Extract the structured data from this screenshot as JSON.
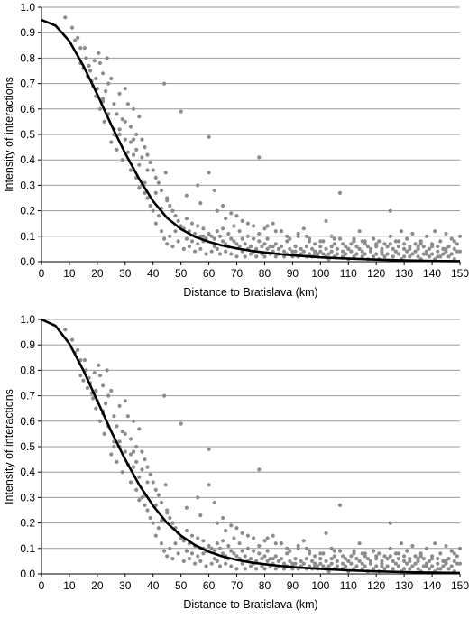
{
  "chart_data": [
    {
      "type": "scatter",
      "title": "",
      "xlabel": "Distance to Bratislava (km)",
      "ylabel": "Intensity of interactions",
      "xlim": [
        0,
        150
      ],
      "ylim": [
        0,
        1.0
      ],
      "x_ticks": [
        "0",
        "10",
        "20",
        "30",
        "40",
        "50",
        "60",
        "70",
        "80",
        "90",
        "100",
        "110",
        "120",
        "130",
        "140",
        "150"
      ],
      "y_ticks": [
        "0.0",
        "0.1",
        "0.2",
        "0.3",
        "0.4",
        "0.5",
        "0.6",
        "0.7",
        "0.8",
        "0.9",
        "1.0"
      ],
      "grid": "horizontal",
      "colors": {
        "points": "#8c8c8c",
        "curve": "#000000",
        "grid": "#9a9a9a"
      },
      "curve": {
        "x": [
          0,
          5,
          10,
          15,
          20,
          25,
          30,
          35,
          40,
          45,
          50,
          55,
          60,
          65,
          70,
          75,
          80,
          85,
          90,
          95,
          100,
          110,
          120,
          130,
          140,
          150
        ],
        "y": [
          0.95,
          0.928,
          0.867,
          0.77,
          0.657,
          0.538,
          0.426,
          0.325,
          0.238,
          0.172,
          0.128,
          0.098,
          0.078,
          0.063,
          0.052,
          0.043,
          0.036,
          0.03,
          0.025,
          0.021,
          0.017,
          0.012,
          0.008,
          0.005,
          0.003,
          0.002
        ]
      },
      "points_series": "dist_points"
    },
    {
      "type": "scatter",
      "title": "",
      "xlabel": "Distance to Bratislava (km)",
      "ylabel": "Intensity of interactions",
      "xlim": [
        0,
        150
      ],
      "ylim": [
        0,
        1.0
      ],
      "x_ticks": [
        "0",
        "10",
        "20",
        "30",
        "40",
        "50",
        "60",
        "70",
        "80",
        "90",
        "100",
        "110",
        "120",
        "130",
        "140",
        "150"
      ],
      "y_ticks": [
        "0.0",
        "0.1",
        "0.2",
        "0.3",
        "0.4",
        "0.5",
        "0.6",
        "0.7",
        "0.8",
        "0.9",
        "1.0"
      ],
      "grid": "horizontal",
      "colors": {
        "points": "#8c8c8c",
        "curve": "#000000",
        "grid": "#9a9a9a"
      },
      "curve": {
        "x": [
          0,
          5,
          10,
          15,
          20,
          25,
          30,
          35,
          40,
          45,
          50,
          55,
          60,
          65,
          70,
          75,
          80,
          85,
          90,
          95,
          100,
          110,
          120,
          130,
          140,
          150
        ],
        "y": [
          1.0,
          0.975,
          0.905,
          0.8,
          0.68,
          0.56,
          0.45,
          0.35,
          0.268,
          0.2,
          0.15,
          0.113,
          0.087,
          0.068,
          0.055,
          0.045,
          0.038,
          0.032,
          0.027,
          0.023,
          0.02,
          0.014,
          0.01,
          0.007,
          0.005,
          0.004
        ]
      },
      "points_series": "dist_points"
    }
  ],
  "dist_points": {
    "x": [
      8.5,
      11,
      12,
      13,
      14,
      14,
      15,
      15.5,
      16,
      16.5,
      17,
      17.5,
      18,
      18.5,
      19,
      19.5,
      19.5,
      20,
      20.5,
      21,
      21,
      22,
      22,
      22.5,
      23,
      23.5,
      24,
      24,
      25,
      25,
      26,
      26,
      27,
      27,
      28,
      28,
      29,
      29,
      30,
      30,
      31,
      31,
      32,
      32,
      33,
      33,
      34,
      34,
      35,
      35,
      36,
      36,
      37,
      37,
      38,
      38,
      39,
      39,
      40,
      40,
      41,
      41,
      42,
      42,
      43,
      43,
      44,
      44,
      44.5,
      45,
      45,
      46,
      46,
      47,
      47,
      48,
      48,
      49,
      49,
      50,
      50,
      51,
      51,
      52,
      52,
      53,
      53,
      54,
      54,
      55,
      55,
      56,
      56,
      57,
      57,
      58,
      58,
      59,
      59,
      60,
      60,
      61,
      61,
      62,
      62,
      63,
      63,
      64,
      64,
      65,
      65,
      66,
      66,
      67,
      67,
      68,
      68,
      69,
      69,
      70,
      70,
      71,
      71,
      72,
      72,
      73,
      73,
      74,
      74,
      75,
      75,
      76,
      76,
      77,
      77,
      78,
      78,
      79,
      79,
      80,
      80,
      81,
      81,
      82,
      82,
      83,
      83,
      84,
      84,
      85,
      85,
      86,
      86,
      87,
      87,
      88,
      88,
      89,
      89,
      90,
      90,
      91,
      91,
      92,
      92,
      93,
      93,
      94,
      94,
      95,
      95,
      96,
      96,
      97,
      97,
      98,
      98,
      99,
      99,
      100,
      100,
      101,
      101,
      102,
      102,
      103,
      103,
      104,
      104,
      105,
      105,
      106,
      106,
      107,
      107,
      108,
      108,
      109,
      109,
      110,
      110,
      111,
      111,
      112,
      112,
      113,
      113,
      114,
      114,
      115,
      115,
      116,
      116,
      117,
      117,
      118,
      118,
      119,
      119,
      120,
      120,
      121,
      121,
      122,
      122,
      123,
      123,
      124,
      124,
      125,
      125,
      126,
      126,
      127,
      127,
      128,
      128,
      129,
      129,
      130,
      130,
      131,
      131,
      132,
      132,
      133,
      133,
      134,
      134,
      135,
      135,
      136,
      136,
      137,
      137,
      138,
      138,
      139,
      139,
      140,
      140,
      141,
      141,
      142,
      142,
      143,
      143,
      144,
      144,
      145,
      145,
      146,
      146,
      147,
      147,
      148,
      148,
      149,
      149,
      150,
      26,
      28,
      30,
      32,
      34,
      36,
      38,
      24,
      22,
      33,
      37,
      41,
      45,
      35,
      43,
      47,
      52,
      56,
      60,
      62,
      65,
      68,
      72,
      76,
      80,
      84,
      88,
      92,
      96,
      100,
      104,
      108,
      112,
      116,
      120,
      124,
      128,
      132,
      136,
      140,
      144,
      148,
      57,
      63,
      74,
      81,
      86,
      95,
      105,
      115,
      125,
      135,
      145,
      58,
      66,
      70,
      78,
      83,
      90,
      98,
      102,
      110,
      118,
      122,
      130,
      138,
      142,
      150
    ],
    "y": [
      0.96,
      0.92,
      0.87,
      0.88,
      0.84,
      0.78,
      0.76,
      0.84,
      0.8,
      0.73,
      0.77,
      0.75,
      0.71,
      0.69,
      0.79,
      0.72,
      0.65,
      0.68,
      0.82,
      0.6,
      0.78,
      0.74,
      0.64,
      0.55,
      0.67,
      0.8,
      0.7,
      0.58,
      0.72,
      0.47,
      0.62,
      0.5,
      0.58,
      0.44,
      0.66,
      0.52,
      0.56,
      0.4,
      0.68,
      0.48,
      0.62,
      0.43,
      0.53,
      0.36,
      0.6,
      0.42,
      0.5,
      0.33,
      0.57,
      0.38,
      0.48,
      0.3,
      0.45,
      0.27,
      0.42,
      0.25,
      0.39,
      0.22,
      0.36,
      0.2,
      0.33,
      0.15,
      0.31,
      0.18,
      0.28,
      0.12,
      0.7,
      0.09,
      0.35,
      0.25,
      0.07,
      0.22,
      0.1,
      0.2,
      0.06,
      0.18,
      0.12,
      0.16,
      0.08,
      0.59,
      0.14,
      0.13,
      0.05,
      0.17,
      0.09,
      0.12,
      0.06,
      0.15,
      0.08,
      0.11,
      0.04,
      0.14,
      0.07,
      0.1,
      0.05,
      0.13,
      0.08,
      0.09,
      0.03,
      0.49,
      0.11,
      0.1,
      0.04,
      0.09,
      0.06,
      0.12,
      0.05,
      0.1,
      0.03,
      0.08,
      0.13,
      0.07,
      0.04,
      0.11,
      0.06,
      0.09,
      0.03,
      0.08,
      0.14,
      0.07,
      0.02,
      0.12,
      0.06,
      0.09,
      0.04,
      0.07,
      0.02,
      0.1,
      0.05,
      0.06,
      0.03,
      0.09,
      0.04,
      0.05,
      0.02,
      0.08,
      0.41,
      0.06,
      0.03,
      0.07,
      0.02,
      0.05,
      0.09,
      0.06,
      0.03,
      0.04,
      0.15,
      0.07,
      0.02,
      0.05,
      0.03,
      0.12,
      0.06,
      0.04,
      0.02,
      0.08,
      0.03,
      0.05,
      0.09,
      0.03,
      0.02,
      0.06,
      0.04,
      0.1,
      0.02,
      0.05,
      0.03,
      0.04,
      0.13,
      0.06,
      0.02,
      0.08,
      0.03,
      0.05,
      0.02,
      0.04,
      0.07,
      0.03,
      0.02,
      0.06,
      0.04,
      0.03,
      0.08,
      0.02,
      0.05,
      0.03,
      0.01,
      0.06,
      0.04,
      0.07,
      0.02,
      0.05,
      0.03,
      0.09,
      0.27,
      0.04,
      0.02,
      0.06,
      0.03,
      0.05,
      0.01,
      0.07,
      0.04,
      0.08,
      0.02,
      0.06,
      0.03,
      0.05,
      0.12,
      0.04,
      0.02,
      0.07,
      0.03,
      0.06,
      0.01,
      0.05,
      0.04,
      0.09,
      0.02,
      0.06,
      0.03,
      0.08,
      0.01,
      0.05,
      0.04,
      0.07,
      0.02,
      0.06,
      0.03,
      0.1,
      0.2,
      0.05,
      0.02,
      0.08,
      0.04,
      0.06,
      0.03,
      0.12,
      0.01,
      0.07,
      0.05,
      0.04,
      0.09,
      0.02,
      0.06,
      0.03,
      0.11,
      0.04,
      0.07,
      0.02,
      0.05,
      0.08,
      0.01,
      0.06,
      0.03,
      0.04,
      0.1,
      0.02,
      0.05,
      0.03,
      0.07,
      0.12,
      0.01,
      0.04,
      0.06,
      0.02,
      0.08,
      0.03,
      0.05,
      0.04,
      0.11,
      0.02,
      0.06,
      0.03,
      0.09,
      0.05,
      0.01,
      0.07,
      0.04,
      0.1,
      0.52,
      0.5,
      0.55,
      0.47,
      0.44,
      0.41,
      0.36,
      0.58,
      0.63,
      0.48,
      0.31,
      0.27,
      0.24,
      0.29,
      0.21,
      0.2,
      0.26,
      0.3,
      0.35,
      0.28,
      0.22,
      0.19,
      0.16,
      0.14,
      0.13,
      0.12,
      0.1,
      0.11,
      0.09,
      0.08,
      0.1,
      0.07,
      0.09,
      0.08,
      0.07,
      0.06,
      0.08,
      0.05,
      0.07,
      0.06,
      0.05,
      0.08,
      0.23,
      0.2,
      0.15,
      0.14,
      0.12,
      0.1,
      0.09,
      0.08,
      0.07,
      0.06,
      0.05,
      0.1,
      0.17,
      0.18,
      0.11,
      0.06,
      0.04,
      0.03,
      0.16,
      0.05,
      0.04,
      0.03,
      0.02,
      0.03,
      0.02,
      0.04
    ]
  }
}
